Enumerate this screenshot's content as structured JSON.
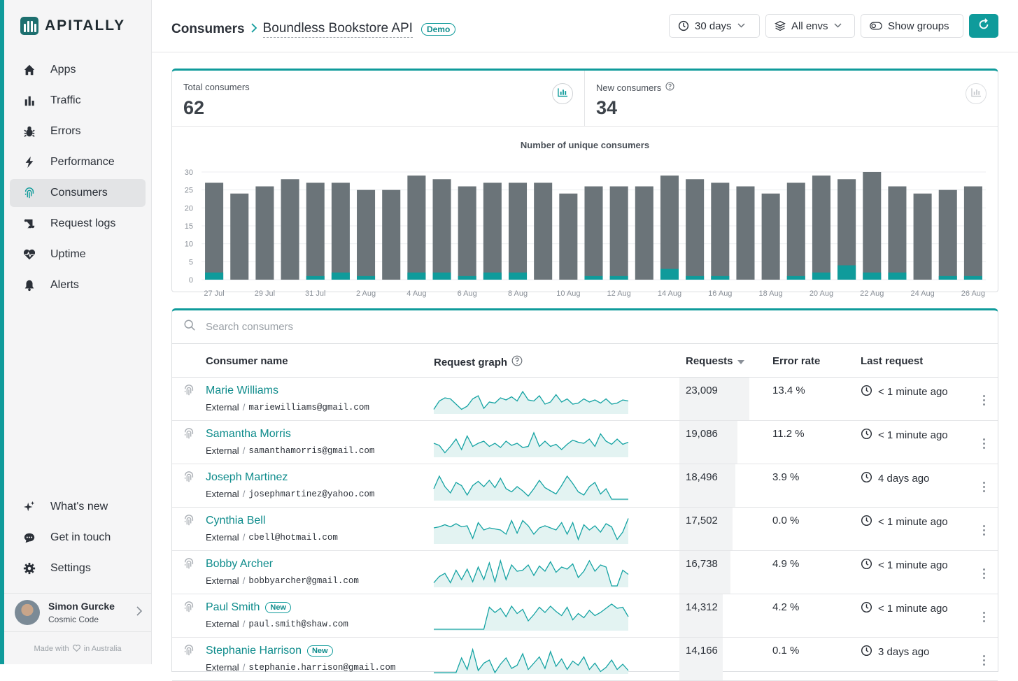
{
  "colors": {
    "accent": "#0f9b9b",
    "bar_total": "#6b7479",
    "bar_new": "#0f9b9b",
    "sparkline_stroke": "#14a3a3",
    "sparkline_fill": "#e3f3f2"
  },
  "brand": {
    "name": "APITALLY"
  },
  "sidebar": {
    "nav": [
      {
        "label": "Apps",
        "icon": "home-icon"
      },
      {
        "label": "Traffic",
        "icon": "bar-chart-icon"
      },
      {
        "label": "Errors",
        "icon": "bug-icon"
      },
      {
        "label": "Performance",
        "icon": "bolt-icon"
      },
      {
        "label": "Consumers",
        "icon": "fingerprint-icon",
        "active": true
      },
      {
        "label": "Request logs",
        "icon": "scroll-icon"
      },
      {
        "label": "Uptime",
        "icon": "heart-pulse-icon"
      },
      {
        "label": "Alerts",
        "icon": "bell-icon"
      }
    ],
    "bottom_nav": [
      {
        "label": "What's new",
        "icon": "sparkles-icon"
      },
      {
        "label": "Get in touch",
        "icon": "chat-icon"
      },
      {
        "label": "Settings",
        "icon": "gear-icon"
      }
    ],
    "user": {
      "name": "Simon Gurcke",
      "org": "Cosmic Code"
    },
    "footer_pre": "Made with",
    "footer_post": "in Australia"
  },
  "header": {
    "breadcrumb_root": "Consumers",
    "app_name": "Boundless Bookstore API",
    "badge": "Demo",
    "period": "30 days",
    "env": "All envs",
    "groups": "Show groups"
  },
  "stats": {
    "total": {
      "label": "Total consumers",
      "value": "62"
    },
    "new": {
      "label": "New consumers",
      "value": "34"
    }
  },
  "chart_data": {
    "type": "bar",
    "title": "Number of unique consumers",
    "ylim": [
      0,
      30
    ],
    "yticks": [
      0,
      5,
      10,
      15,
      20,
      25,
      30
    ],
    "grid": true,
    "legend": "none",
    "categories": [
      "27 Jul",
      "28 Jul",
      "29 Jul",
      "30 Jul",
      "31 Jul",
      "1 Aug",
      "2 Aug",
      "3 Aug",
      "4 Aug",
      "5 Aug",
      "6 Aug",
      "7 Aug",
      "8 Aug",
      "9 Aug",
      "10 Aug",
      "11 Aug",
      "12 Aug",
      "13 Aug",
      "14 Aug",
      "15 Aug",
      "16 Aug",
      "17 Aug",
      "18 Aug",
      "19 Aug",
      "20 Aug",
      "21 Aug",
      "22 Aug",
      "23 Aug",
      "24 Aug",
      "25 Aug",
      "26 Aug"
    ],
    "xtick_labels": [
      "27 Jul",
      "29 Jul",
      "31 Jul",
      "2 Aug",
      "4 Aug",
      "6 Aug",
      "8 Aug",
      "10 Aug",
      "12 Aug",
      "14 Aug",
      "16 Aug",
      "18 Aug",
      "20 Aug",
      "22 Aug",
      "24 Aug",
      "26 Aug"
    ],
    "series": [
      {
        "values": [
          27,
          24,
          26,
          28,
          27,
          27,
          25,
          25,
          29,
          28,
          26,
          27,
          27,
          27,
          24,
          26,
          26,
          26,
          29,
          28,
          27,
          26,
          24,
          27,
          29,
          28,
          30,
          26,
          24,
          25,
          26
        ]
      },
      {
        "values": [
          2,
          0,
          0,
          0,
          1,
          2,
          1,
          0,
          2,
          2,
          1,
          2,
          2,
          0,
          0,
          1,
          1,
          0,
          3,
          1,
          1,
          0,
          0,
          1,
          2,
          4,
          2,
          2,
          0,
          1,
          1
        ]
      }
    ]
  },
  "table": {
    "search_placeholder": "Search consumers",
    "columns": {
      "name": "Consumer name",
      "graph": "Request graph",
      "requests": "Requests",
      "error_rate": "Error rate",
      "last_request": "Last request"
    },
    "rows": [
      {
        "name": "Marie Williams",
        "badge": "",
        "group": "External",
        "email": "mariewilliams@gmail.com",
        "requests": "23,009",
        "requests_num": 23009,
        "error_rate": "13.4 %",
        "last_request": "< 1 minute ago",
        "spark": [
          3,
          11,
          14,
          13,
          8,
          3,
          6,
          13,
          16,
          4,
          10,
          9,
          14,
          12,
          15,
          11,
          20,
          12,
          11,
          16,
          8,
          10,
          17,
          10,
          13,
          8,
          9,
          13,
          10,
          12,
          9,
          13,
          8,
          9,
          12,
          11
        ]
      },
      {
        "name": "Samantha Morris",
        "badge": "",
        "group": "External",
        "email": "samanthamorris@gmail.com",
        "requests": "19,086",
        "requests_num": 19086,
        "error_rate": "11.2 %",
        "last_request": "< 1 minute ago",
        "spark": [
          12,
          10,
          3,
          9,
          16,
          6,
          19,
          9,
          12,
          14,
          9,
          12,
          8,
          14,
          10,
          12,
          8,
          9,
          22,
          9,
          14,
          9,
          11,
          6,
          11,
          15,
          13,
          12,
          16,
          9,
          21,
          14,
          11,
          16,
          11,
          13
        ]
      },
      {
        "name": "Joseph Martinez",
        "badge": "",
        "group": "External",
        "email": "josephmartinez@yahoo.com",
        "requests": "18,496",
        "requests_num": 18496,
        "error_rate": "3.9 %",
        "last_request": "4 days ago",
        "spark": [
          10,
          22,
          12,
          6,
          16,
          13,
          4,
          13,
          17,
          12,
          18,
          11,
          20,
          10,
          7,
          12,
          8,
          3,
          10,
          18,
          11,
          8,
          5,
          13,
          22,
          15,
          7,
          4,
          12,
          16,
          5,
          10,
          0,
          0,
          0,
          0
        ]
      },
      {
        "name": "Cynthia Bell",
        "badge": "",
        "group": "External",
        "email": "cbell@hotmail.com",
        "requests": "17,502",
        "requests_num": 17502,
        "error_rate": "0.0 %",
        "last_request": "< 1 minute ago",
        "spark": [
          14,
          15,
          17,
          15,
          18,
          15,
          16,
          4,
          19,
          12,
          14,
          13,
          12,
          8,
          21,
          9,
          21,
          16,
          8,
          14,
          16,
          14,
          12,
          19,
          8,
          19,
          3,
          17,
          12,
          16,
          10,
          18,
          15,
          3,
          10,
          23
        ]
      },
      {
        "name": "Bobby Archer",
        "badge": "",
        "group": "External",
        "email": "bobbyarcher@gmail.com",
        "requests": "16,738",
        "requests_num": 16738,
        "error_rate": "4.9 %",
        "last_request": "< 1 minute ago",
        "spark": [
          3,
          9,
          12,
          3,
          15,
          6,
          16,
          4,
          18,
          6,
          22,
          4,
          24,
          6,
          20,
          14,
          15,
          20,
          10,
          19,
          14,
          23,
          13,
          18,
          16,
          21,
          8,
          14,
          24,
          14,
          20,
          18,
          0,
          0,
          15,
          11
        ]
      },
      {
        "name": "Paul Smith",
        "badge": "New",
        "group": "External",
        "email": "paul.smith@shaw.com",
        "requests": "14,312",
        "requests_num": 14312,
        "error_rate": "4.2 %",
        "last_request": "< 1 minute ago",
        "spark": [
          0,
          0,
          0,
          0,
          0,
          0,
          0,
          0,
          0,
          0,
          21,
          16,
          20,
          12,
          22,
          15,
          19,
          8,
          14,
          21,
          16,
          22,
          17,
          13,
          21,
          9,
          15,
          11,
          18,
          13,
          16,
          20,
          24,
          20,
          21,
          12
        ]
      },
      {
        "name": "Stephanie Harrison",
        "badge": "New",
        "group": "External",
        "email": "stephanie.harrison@gmail.com",
        "requests": "14,166",
        "requests_num": 14166,
        "error_rate": "0.1 %",
        "last_request": "3 days ago",
        "spark": [
          0,
          0,
          0,
          0,
          0,
          14,
          3,
          22,
          2,
          9,
          12,
          0,
          8,
          14,
          4,
          7,
          18,
          3,
          9,
          15,
          4,
          20,
          6,
          13,
          3,
          11,
          7,
          15,
          3,
          9,
          1,
          5,
          12,
          3,
          8,
          2
        ]
      }
    ]
  }
}
